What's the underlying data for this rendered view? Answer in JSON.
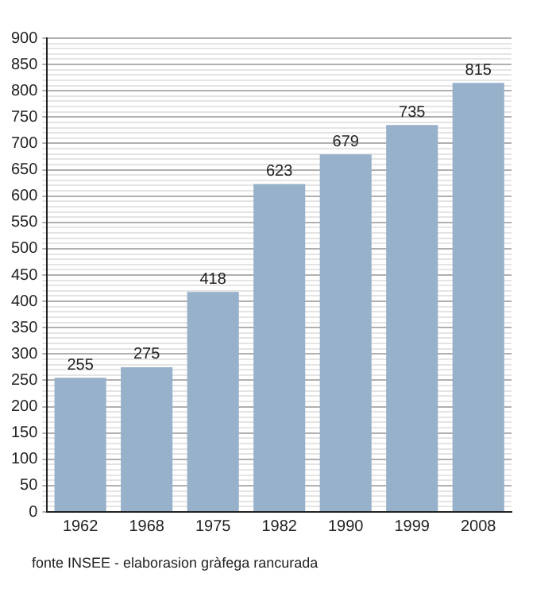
{
  "chart_data": {
    "type": "bar",
    "categories": [
      "1962",
      "1968",
      "1975",
      "1982",
      "1990",
      "1999",
      "2008"
    ],
    "values": [
      255,
      275,
      418,
      623,
      679,
      735,
      815
    ],
    "color": "#98b1ca",
    "data_labels": true,
    "grid": "y",
    "ylim": [
      0,
      900
    ],
    "yticks": [
      0,
      {
        "value": 10,
        "label": null
      },
      {
        "value": 20,
        "label": null
      },
      {
        "value": 30,
        "label": null
      },
      {
        "value": 40,
        "label": null
      },
      50,
      {
        "value": 60,
        "label": null
      },
      {
        "value": 70,
        "label": null
      },
      {
        "value": 80,
        "label": null
      },
      {
        "value": 90,
        "label": null
      },
      100,
      {
        "value": 110,
        "label": null
      },
      {
        "value": 120,
        "label": null
      },
      {
        "value": 130,
        "label": null
      },
      {
        "value": 140,
        "label": null
      },
      150,
      {
        "value": 160,
        "label": null
      },
      {
        "value": 170,
        "label": null
      },
      {
        "value": 180,
        "label": null
      },
      {
        "value": 190,
        "label": null
      },
      200,
      {
        "value": 210,
        "label": null
      },
      {
        "value": 220,
        "label": null
      },
      {
        "value": 230,
        "label": null
      },
      {
        "value": 240,
        "label": null
      },
      250,
      {
        "value": 260,
        "label": null
      },
      {
        "value": 270,
        "label": null
      },
      {
        "value": 280,
        "label": null
      },
      {
        "value": 290,
        "label": null
      },
      300,
      {
        "value": 310,
        "label": null
      },
      {
        "value": 320,
        "label": null
      },
      {
        "value": 330,
        "label": null
      },
      {
        "value": 340,
        "label": null
      },
      350,
      {
        "value": 360,
        "label": null
      },
      {
        "value": 370,
        "label": null
      },
      {
        "value": 380,
        "label": null
      },
      {
        "value": 390,
        "label": null
      },
      400,
      {
        "value": 410,
        "label": null
      },
      {
        "value": 420,
        "label": null
      },
      {
        "value": 430,
        "label": null
      },
      {
        "value": 440,
        "label": null
      },
      450,
      {
        "value": 460,
        "label": null
      },
      {
        "value": 470,
        "label": null
      },
      {
        "value": 480,
        "label": null
      },
      {
        "value": 490,
        "label": null
      },
      500,
      {
        "value": 510,
        "label": null
      },
      {
        "value": 520,
        "label": null
      },
      {
        "value": 530,
        "label": null
      },
      {
        "value": 540,
        "label": null
      },
      550,
      {
        "value": 560,
        "label": null
      },
      {
        "value": 570,
        "label": null
      },
      {
        "value": 580,
        "label": null
      },
      {
        "value": 590,
        "label": null
      },
      600,
      {
        "value": 610,
        "label": null
      },
      {
        "value": 620,
        "label": null
      },
      {
        "value": 630,
        "label": null
      },
      {
        "value": 640,
        "label": null
      },
      650,
      {
        "value": 660,
        "label": null
      },
      {
        "value": 670,
        "label": null
      },
      {
        "value": 680,
        "label": null
      },
      {
        "value": 690,
        "label": null
      },
      700,
      {
        "value": 710,
        "label": null
      },
      {
        "value": 720,
        "label": null
      },
      {
        "value": 730,
        "label": null
      },
      {
        "value": 740,
        "label": null
      },
      750,
      {
        "value": 760,
        "label": null
      },
      {
        "value": 770,
        "label": null
      },
      {
        "value": 780,
        "label": null
      },
      {
        "value": 790,
        "label": null
      },
      800,
      {
        "value": 810,
        "label": null
      },
      {
        "value": 820,
        "label": null
      },
      {
        "value": 830,
        "label": null
      },
      {
        "value": 840,
        "label": null
      },
      850,
      {
        "value": 860,
        "label": null
      },
      {
        "value": 870,
        "label": null
      },
      {
        "value": 880,
        "label": null
      },
      {
        "value": 890,
        "label": null
      },
      900
    ],
    "annotations": [
      "fonte INSEE - elaborasion gràfega rancurada"
    ]
  }
}
